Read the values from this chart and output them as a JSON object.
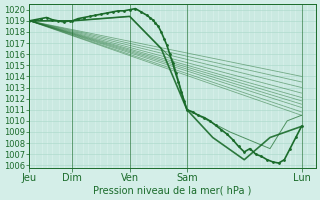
{
  "bg_color": "#d4eee8",
  "grid_color": "#a8d8c8",
  "line_color": "#1a6b2a",
  "ylabel": "Pression niveau de la mer( hPa )",
  "ylim": [
    1006,
    1020.5
  ],
  "yticks": [
    1006,
    1007,
    1008,
    1009,
    1010,
    1011,
    1012,
    1013,
    1014,
    1015,
    1016,
    1017,
    1018,
    1019,
    1020
  ],
  "xtick_labels": [
    "Jeu",
    "Dim",
    "Ven",
    "Sam",
    "Lun"
  ],
  "xtick_positions": [
    0,
    0.75,
    1.75,
    2.75,
    4.75
  ],
  "xmin": 0,
  "xmax": 5.0,
  "ensemble_lines": [
    {
      "x": [
        0,
        4.75
      ],
      "y": [
        1019.0,
        1010.5
      ]
    },
    {
      "x": [
        0,
        4.75
      ],
      "y": [
        1019.0,
        1010.8
      ]
    },
    {
      "x": [
        0,
        4.75
      ],
      "y": [
        1019.0,
        1011.2
      ]
    },
    {
      "x": [
        0,
        4.75
      ],
      "y": [
        1019.0,
        1011.5
      ]
    },
    {
      "x": [
        0,
        4.75
      ],
      "y": [
        1019.0,
        1011.8
      ]
    },
    {
      "x": [
        0,
        4.75
      ],
      "y": [
        1019.0,
        1012.1
      ]
    },
    {
      "x": [
        0,
        4.75
      ],
      "y": [
        1019.0,
        1012.5
      ]
    },
    {
      "x": [
        0,
        4.75
      ],
      "y": [
        1019.0,
        1013.0
      ]
    },
    {
      "x": [
        0,
        4.75
      ],
      "y": [
        1019.0,
        1013.5
      ]
    },
    {
      "x": [
        0,
        4.75
      ],
      "y": [
        1019.0,
        1014.0
      ]
    }
  ],
  "main_line_x": [
    0.0,
    0.1,
    0.2,
    0.3,
    0.4,
    0.5,
    0.6,
    0.7,
    0.75,
    0.85,
    0.95,
    1.05,
    1.15,
    1.25,
    1.35,
    1.45,
    1.55,
    1.65,
    1.75,
    1.85,
    1.95,
    2.05,
    2.1,
    2.15,
    2.2,
    2.25,
    2.3,
    2.35,
    2.4,
    2.45,
    2.5,
    2.55,
    2.6,
    2.65,
    2.7,
    2.75,
    2.85,
    2.95,
    3.05,
    3.15,
    3.25,
    3.35,
    3.45,
    3.55,
    3.65,
    3.75,
    3.85,
    3.95,
    4.05,
    4.15,
    4.25,
    4.35,
    4.45,
    4.55,
    4.65,
    4.75
  ],
  "main_line_y": [
    1019.0,
    1019.1,
    1019.2,
    1019.3,
    1019.1,
    1019.0,
    1018.9,
    1019.0,
    1019.0,
    1019.2,
    1019.3,
    1019.4,
    1019.5,
    1019.6,
    1019.7,
    1019.8,
    1019.9,
    1019.9,
    1020.0,
    1020.1,
    1019.8,
    1019.5,
    1019.3,
    1019.1,
    1018.8,
    1018.5,
    1018.0,
    1017.4,
    1016.8,
    1016.0,
    1015.2,
    1014.3,
    1013.5,
    1012.6,
    1011.8,
    1011.0,
    1010.8,
    1010.5,
    1010.3,
    1010.0,
    1009.6,
    1009.2,
    1008.8,
    1008.3,
    1007.7,
    1007.2,
    1007.5,
    1007.0,
    1006.8,
    1006.5,
    1006.3,
    1006.2,
    1006.5,
    1007.5,
    1008.5,
    1009.5
  ],
  "secondary_line_x": [
    0.0,
    0.75,
    1.75,
    2.5,
    2.75,
    3.5,
    4.2,
    4.5,
    4.75
  ],
  "secondary_line_y": [
    1019.0,
    1019.0,
    1019.4,
    1015.5,
    1011.0,
    1009.0,
    1007.5,
    1010.0,
    1010.5
  ],
  "thick_line_x": [
    0.0,
    0.75,
    1.75,
    2.3,
    2.75,
    3.2,
    3.75,
    4.2,
    4.75
  ],
  "thick_line_y": [
    1019.0,
    1019.0,
    1019.4,
    1016.5,
    1011.0,
    1008.5,
    1006.5,
    1008.5,
    1009.5
  ],
  "vline_positions": [
    0.0,
    0.75,
    1.75,
    2.75,
    4.75
  ]
}
